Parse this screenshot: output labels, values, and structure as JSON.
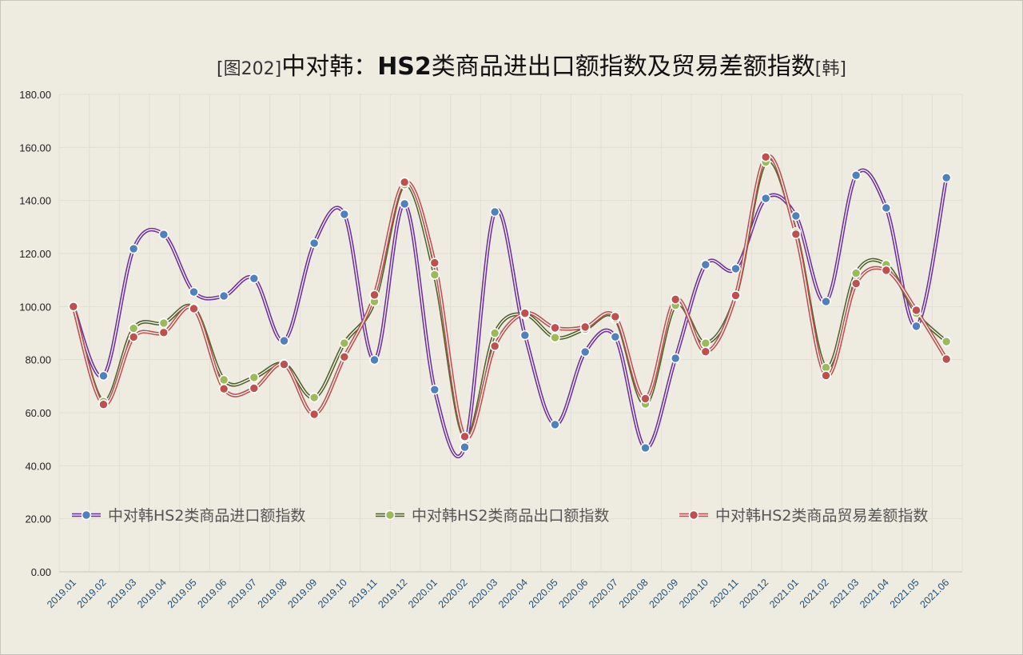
{
  "chart_data": {
    "type": "line",
    "title_prefix": "[图202]",
    "title_main_a": "中对韩：",
    "title_main_b": "HS2",
    "title_main_c": "类商品进出口额指数及贸易差额指数",
    "title_suffix": "[韩]",
    "ylim": [
      0,
      180
    ],
    "yticks": [
      "0.00",
      "20.00",
      "40.00",
      "60.00",
      "80.00",
      "100.00",
      "120.00",
      "140.00",
      "160.00",
      "180.00"
    ],
    "grid": true,
    "legend_position": "bottom-inside",
    "categories": [
      "2019.01",
      "2019.02",
      "2019.03",
      "2019.04",
      "2019.05",
      "2019.06",
      "2019.07",
      "2019.08",
      "2019.09",
      "2019.10",
      "2019.11",
      "2019.12",
      "2020.01",
      "2020.02",
      "2020.03",
      "2020.04",
      "2020.05",
      "2020.06",
      "2020.07",
      "2020.08",
      "2020.09",
      "2020.10",
      "2020.11",
      "2020.12",
      "2021.01",
      "2021.02",
      "2021.03",
      "2021.04",
      "2021.05",
      "2021.06"
    ],
    "series": [
      {
        "name": "中对韩HS2类商品进口额指数",
        "line_color": "#7030a0",
        "marker_color": "#4f81bd",
        "values": [
          100,
          73.9,
          121.8,
          127.2,
          105.5,
          104,
          110.6,
          87.1,
          123.9,
          134.8,
          79.9,
          138.7,
          68.7,
          47,
          135.7,
          89.2,
          55.5,
          82.9,
          88.6,
          46.7,
          80.5,
          115.8,
          114.3,
          140.8,
          134.2,
          101.9,
          149.5,
          137.2,
          92.6,
          148.6
        ]
      },
      {
        "name": "中对韩HS2类商品出口额指数",
        "line_color": "#4f6228",
        "marker_color": "#9bbb59",
        "values": [
          100,
          64.2,
          91.8,
          93.8,
          99.5,
          72.4,
          73.3,
          78.4,
          65.7,
          86.2,
          101.9,
          146,
          112,
          50.5,
          90,
          97,
          88.3,
          91.5,
          95.5,
          63.3,
          100.5,
          86.2,
          104,
          154.5,
          128,
          77,
          112.6,
          115.8,
          97.5,
          86.8
        ]
      },
      {
        "name": "中对韩HS2类商品贸易差额指数",
        "line_color": "#c0504d",
        "marker_color": "#c0504d",
        "values": [
          100,
          63.1,
          88.5,
          90.2,
          99.2,
          69,
          69.2,
          78.2,
          59.4,
          81,
          104.4,
          146.9,
          116.5,
          51,
          85.1,
          97.5,
          92,
          92.3,
          96.2,
          65.3,
          102.7,
          83,
          104.2,
          156.4,
          127.3,
          74,
          108.7,
          113.7,
          98.6,
          80.2
        ]
      }
    ]
  }
}
